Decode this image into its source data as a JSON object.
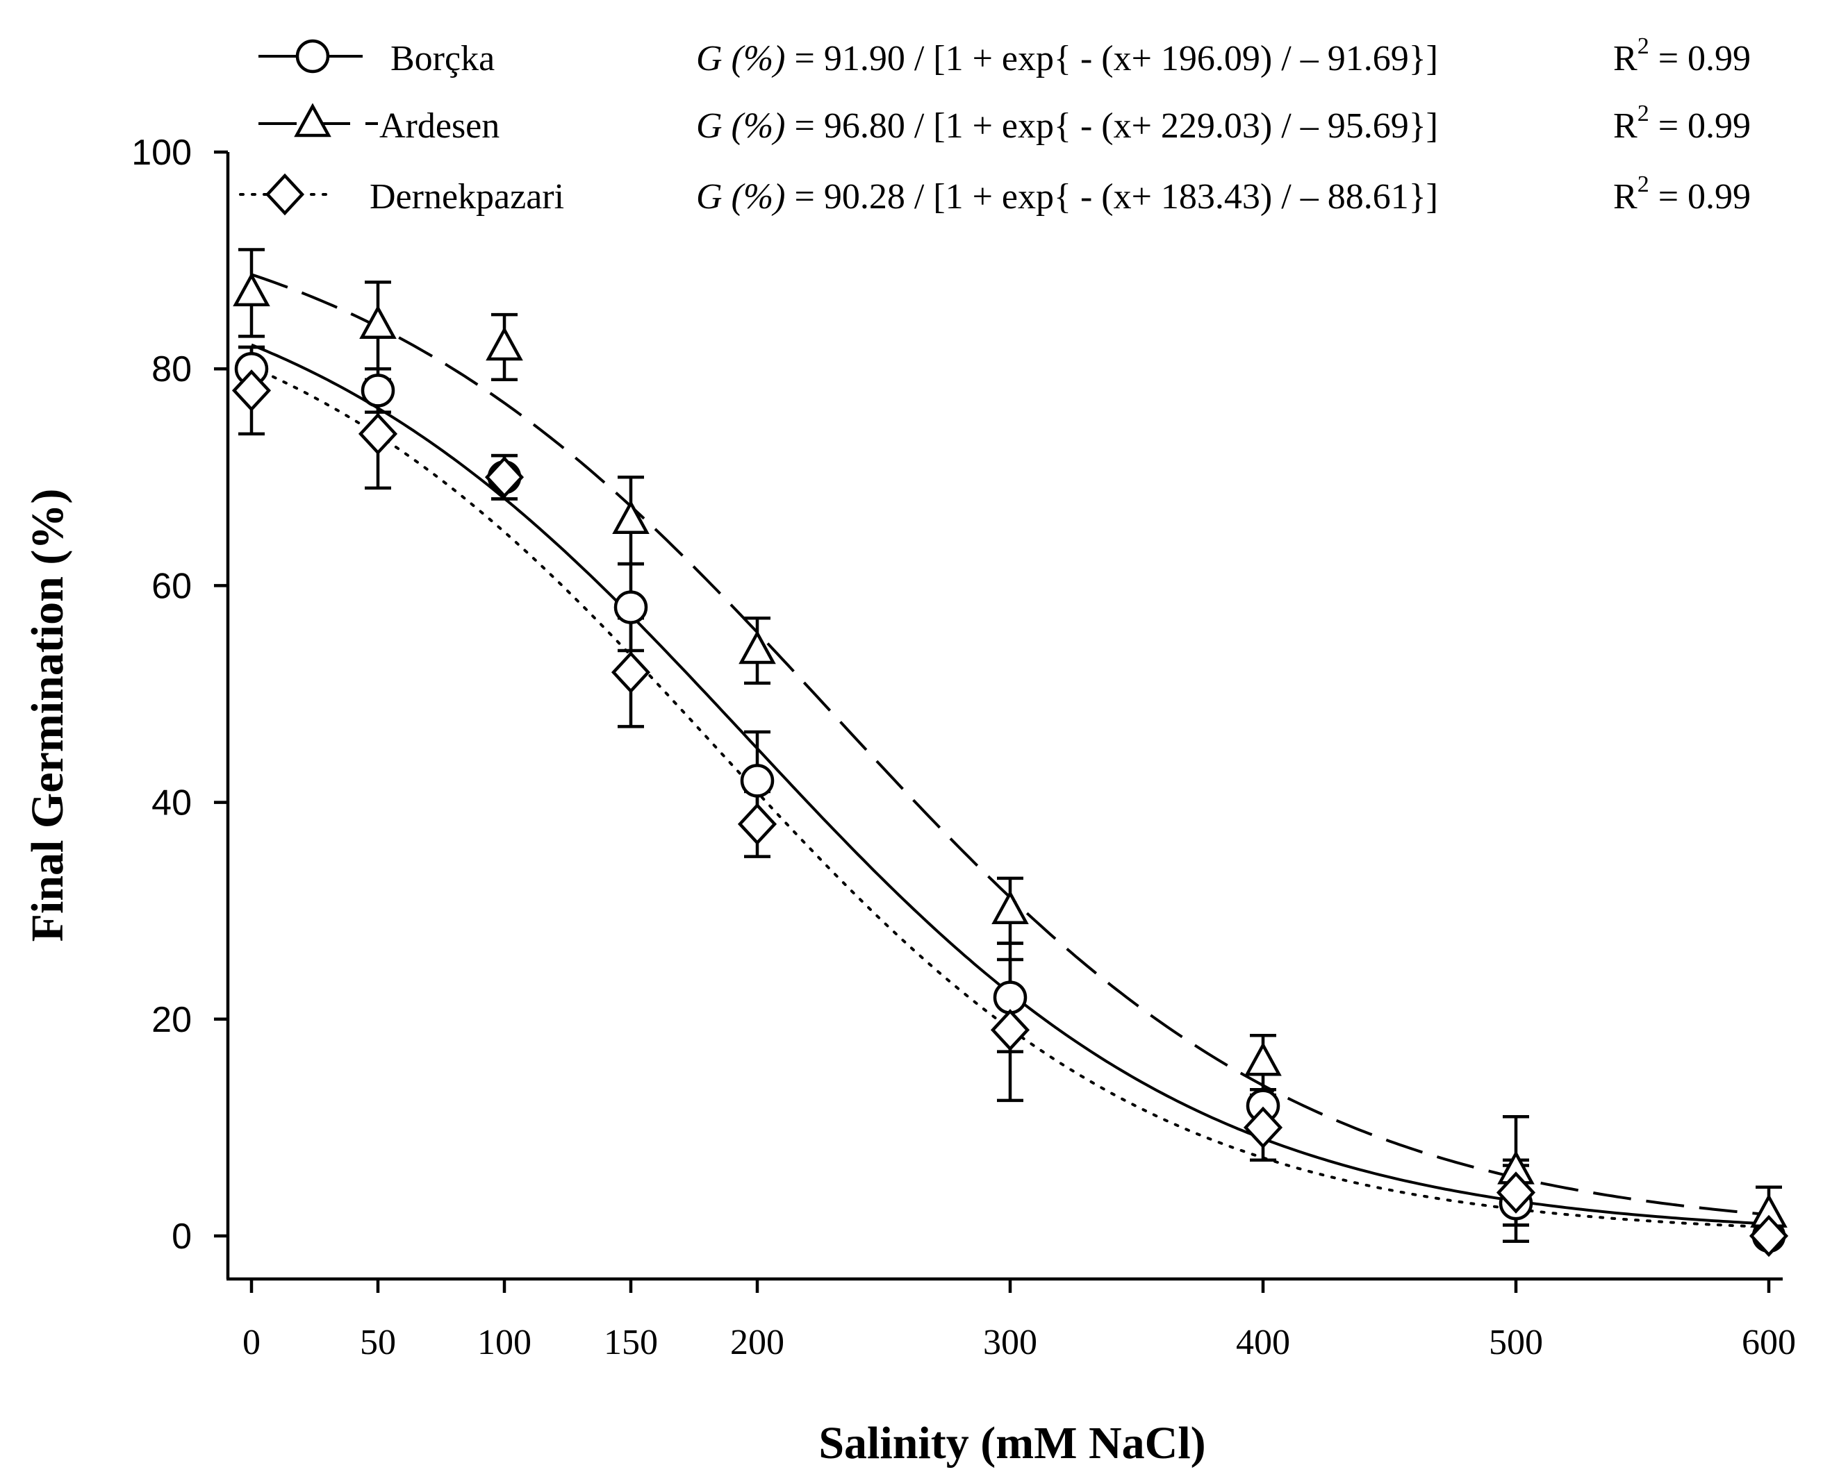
{
  "chart_data": {
    "type": "scatter",
    "title": "",
    "xlabel": "Salinity (mM NaCl)",
    "ylabel": "Final Germination (%)",
    "ylim": [
      0,
      100
    ],
    "x_tick_labels": [
      "0",
      "50",
      "100",
      "150",
      "200",
      "300",
      "400",
      "500",
      "600"
    ],
    "x_tick_values": [
      0,
      50,
      100,
      150,
      200,
      300,
      400,
      500,
      600
    ],
    "y_ticks": [
      "0",
      "20",
      "40",
      "60",
      "80",
      "100"
    ],
    "y_tick_values": [
      0,
      20,
      40,
      60,
      80,
      100
    ],
    "series": [
      {
        "name": "Borçka",
        "marker": "circle",
        "line": "solid",
        "equation_prefix": "G (%)",
        "equation": "= 91.90 / [1 + exp{ - (x+ 196.09) / – 91.69}]",
        "r2_label": "R",
        "r2_sup": "2",
        "r2_value": "= 0.99",
        "fit": {
          "a": 91.9,
          "x0": -196.09,
          "b": -91.69
        },
        "x": [
          0,
          50,
          100,
          150,
          200,
          300,
          400,
          500,
          600
        ],
        "values": [
          80,
          78,
          70,
          58,
          42,
          22,
          12,
          3,
          0
        ],
        "errors": [
          2,
          2,
          2,
          4,
          4.5,
          5,
          1.5,
          3.5,
          0
        ]
      },
      {
        "name": "Ardesen",
        "marker": "triangle",
        "line": "dashed",
        "equation_prefix": "G (%)",
        "equation": "= 96.80 / [1 + exp{ - (x+ 229.03) / – 95.69}]",
        "r2_label": "R",
        "r2_sup": "2",
        "r2_value": "= 0.99",
        "fit": {
          "a": 96.8,
          "x0": -229.03,
          "b": -95.69
        },
        "x": [
          0,
          50,
          100,
          150,
          200,
          300,
          400,
          500,
          600
        ],
        "values": [
          87,
          84,
          82,
          66,
          54,
          30,
          16,
          6,
          2
        ],
        "errors": [
          4,
          4,
          3,
          4,
          3,
          3,
          2.5,
          5,
          2.5
        ]
      },
      {
        "name": "Dernekpazari",
        "marker": "diamond",
        "line": "dotted",
        "equation_prefix": "G (%)",
        "equation": "= 90.28 / [1 + exp{ - (x+ 183.43) / – 88.61}]",
        "r2_label": "R",
        "r2_sup": "2",
        "r2_value": "= 0.99",
        "fit": {
          "a": 90.28,
          "x0": -183.43,
          "b": -88.61
        },
        "x": [
          0,
          50,
          100,
          150,
          200,
          300,
          400,
          500,
          600
        ],
        "values": [
          78,
          74,
          70,
          52,
          38,
          19,
          10,
          4,
          0
        ],
        "errors": [
          4,
          5,
          2,
          5,
          3,
          6.5,
          3,
          3,
          0
        ]
      }
    ],
    "legend_position": "top"
  }
}
